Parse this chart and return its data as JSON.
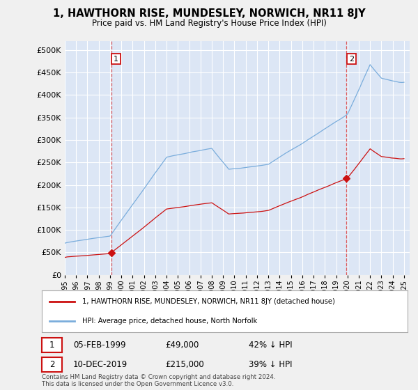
{
  "title": "1, HAWTHORN RISE, MUNDESLEY, NORWICH, NR11 8JY",
  "subtitle": "Price paid vs. HM Land Registry's House Price Index (HPI)",
  "background_color": "#f0f0f0",
  "plot_bg_color": "#dce6f5",
  "grid_color": "#ffffff",
  "sale1_date": "05-FEB-1999",
  "sale1_price": 49000,
  "sale1_year": 1999.1,
  "sale1_label": "42% ↓ HPI",
  "sale2_date": "10-DEC-2019",
  "sale2_price": 215000,
  "sale2_year": 2019.92,
  "sale2_label": "39% ↓ HPI",
  "legend_label_red": "1, HAWTHORN RISE, MUNDESLEY, NORWICH, NR11 8JY (detached house)",
  "legend_label_blue": "HPI: Average price, detached house, North Norfolk",
  "footnote": "Contains HM Land Registry data © Crown copyright and database right 2024.\nThis data is licensed under the Open Government Licence v3.0.",
  "ylim": [
    0,
    520000
  ],
  "xlim_start": 1995.0,
  "xlim_end": 2025.5,
  "hpi_color": "#7aaddc",
  "red_color": "#cc1111",
  "dashed_color": "#dd4444"
}
